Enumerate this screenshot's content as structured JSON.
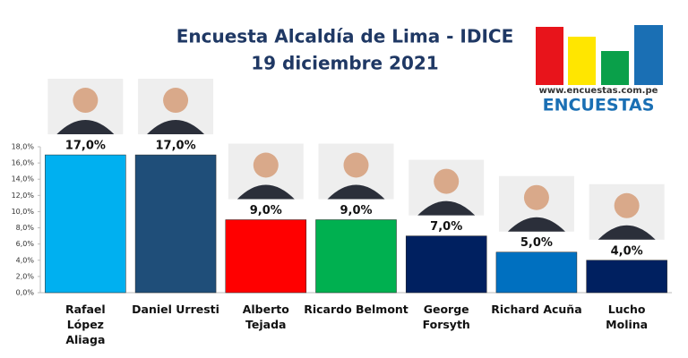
{
  "chart_data": {
    "type": "bar",
    "title": "Encuesta Alcaldía de Lima - IDICE",
    "subtitle": "19 diciembre 2021",
    "logo_url": "www.encuestas.com.pe",
    "logo_name": "ENCUESTAS",
    "categories": [
      "Rafael López Aliaga",
      "Daniel Urresti",
      "Alberto Tejada",
      "Ricardo Belmont",
      "George Forsyth",
      "Richard Acuña",
      "Lucho Molina"
    ],
    "values": [
      17,
      17,
      9,
      9,
      7,
      5,
      4
    ],
    "value_labels": [
      "17,0%",
      "17,0%",
      "9,0%",
      "9,0%",
      "7,0%",
      "5,0%",
      "4,0%"
    ],
    "colors": [
      "#00b0f0",
      "#1f4e79",
      "#ff0000",
      "#00b050",
      "#002060",
      "#0070c0",
      "#002060"
    ],
    "ylim": [
      0,
      18
    ],
    "yticks": [
      {
        "value": 0,
        "label": "0,0%"
      },
      {
        "value": 2,
        "label": "2,0%"
      },
      {
        "value": 4,
        "label": "4,0%"
      },
      {
        "value": 6,
        "label": "6,0%"
      },
      {
        "value": 8,
        "label": "8,0%"
      },
      {
        "value": 10,
        "label": "10,0%"
      },
      {
        "value": 12,
        "label": "12,0%"
      },
      {
        "value": 14,
        "label": "14,0%"
      },
      {
        "value": 16,
        "label": "16,0%"
      },
      {
        "value": 18,
        "label": "18,0%"
      }
    ],
    "grid": false
  }
}
